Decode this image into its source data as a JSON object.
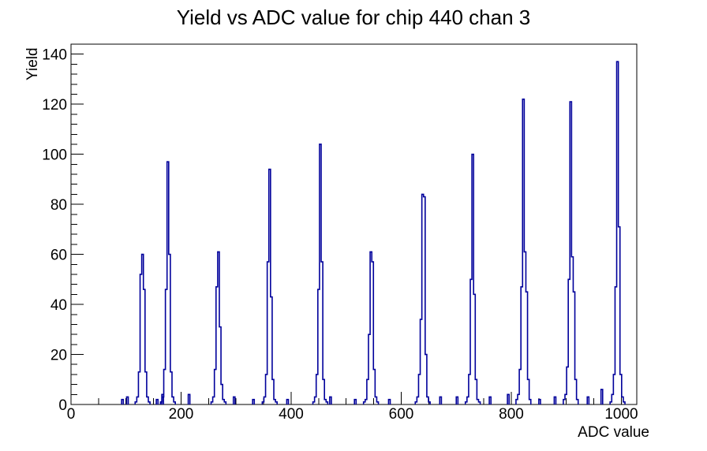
{
  "chart_data": {
    "type": "histogram",
    "title": "Yield vs ADC value for chip 440 chan 3",
    "xlabel": "ADC value",
    "ylabel": "Yield",
    "x_range": [
      0,
      1028
    ],
    "y_range": [
      0,
      144
    ],
    "x_major_ticks": [
      0,
      200,
      400,
      600,
      800,
      1000
    ],
    "x_minor_step": 50,
    "y_major_ticks": [
      0,
      20,
      40,
      60,
      80,
      100,
      120,
      140
    ],
    "y_minor_step": 4,
    "grid": false,
    "legend": false,
    "line_color": "#00009b",
    "bin_width": 3,
    "peaks": [
      {
        "center": 130,
        "peak_height": 60,
        "heights": [
          1,
          3,
          13,
          52,
          60,
          46,
          13,
          3,
          1
        ]
      },
      {
        "center": 176,
        "peak_height": 97,
        "heights": [
          1,
          3,
          14,
          46,
          97,
          60,
          13,
          3,
          1
        ]
      },
      {
        "center": 268,
        "peak_height": 61,
        "heights": [
          1,
          3,
          14,
          47,
          61,
          31,
          8,
          2,
          1
        ]
      },
      {
        "center": 361,
        "peak_height": 94,
        "heights": [
          1,
          3,
          12,
          57,
          94,
          43,
          10,
          2,
          1
        ]
      },
      {
        "center": 453,
        "peak_height": 104,
        "heights": [
          1,
          3,
          12,
          46,
          104,
          57,
          10,
          2,
          1
        ]
      },
      {
        "center": 545,
        "peak_height": 61,
        "heights": [
          1,
          2,
          10,
          28,
          61,
          57,
          14,
          3,
          1
        ]
      },
      {
        "center": 639,
        "peak_height": 84,
        "heights": [
          1,
          3,
          12,
          34,
          84,
          83,
          20,
          3,
          1
        ]
      },
      {
        "center": 730,
        "peak_height": 100,
        "heights": [
          1,
          3,
          12,
          50,
          100,
          44,
          10,
          2,
          1
        ]
      },
      {
        "center": 822,
        "peak_height": 122,
        "heights": [
          2,
          4,
          14,
          47,
          122,
          61,
          45,
          10,
          2
        ]
      },
      {
        "center": 908,
        "peak_height": 121,
        "heights": [
          2,
          4,
          15,
          50,
          121,
          59,
          45,
          10,
          2
        ]
      },
      {
        "center": 993,
        "peak_height": 137,
        "heights": [
          1,
          4,
          12,
          47,
          137,
          71,
          12,
          3,
          1
        ]
      }
    ],
    "bumps": [
      {
        "x": 92,
        "h": 2
      },
      {
        "x": 101,
        "h": 3
      },
      {
        "x": 155,
        "h": 2
      },
      {
        "x": 165,
        "h": 4
      },
      {
        "x": 213,
        "h": 4
      },
      {
        "x": 295,
        "h": 3
      },
      {
        "x": 330,
        "h": 2
      },
      {
        "x": 392,
        "h": 2
      },
      {
        "x": 470,
        "h": 3
      },
      {
        "x": 515,
        "h": 2
      },
      {
        "x": 577,
        "h": 2
      },
      {
        "x": 670,
        "h": 3
      },
      {
        "x": 700,
        "h": 3
      },
      {
        "x": 760,
        "h": 3
      },
      {
        "x": 793,
        "h": 4
      },
      {
        "x": 850,
        "h": 2
      },
      {
        "x": 878,
        "h": 3
      },
      {
        "x": 938,
        "h": 3
      },
      {
        "x": 963,
        "h": 6
      }
    ]
  },
  "colors": {
    "background": "#ffffff",
    "frame": "#000000",
    "text": "#000000"
  }
}
